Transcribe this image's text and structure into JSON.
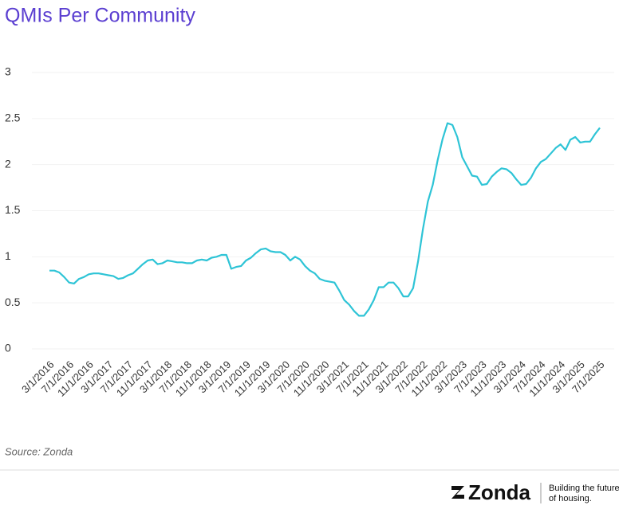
{
  "chart_data": {
    "type": "line",
    "title": "QMIs Per Community",
    "source": "Source: Zonda",
    "brand": "Zonda",
    "tagline": [
      "Building the future",
      "of housing."
    ],
    "categories": [
      "3/1/2016",
      null,
      null,
      null,
      "7/1/2016",
      null,
      null,
      null,
      "11/1/2016",
      null,
      null,
      null,
      "3/1/2017",
      null,
      null,
      null,
      "7/1/2017",
      null,
      null,
      null,
      "11/1/2017",
      null,
      null,
      null,
      "3/1/2018",
      null,
      null,
      null,
      "7/1/2018",
      null,
      null,
      null,
      "11/1/2018",
      null,
      null,
      null,
      "3/1/2019",
      null,
      null,
      null,
      "7/1/2019",
      null,
      null,
      null,
      "11/1/2019",
      null,
      null,
      null,
      "3/1/2020",
      null,
      null,
      null,
      "7/1/2020",
      null,
      null,
      null,
      "11/1/2020",
      null,
      null,
      null,
      "3/1/2021",
      null,
      null,
      null,
      "7/1/2021",
      null,
      null,
      null,
      "11/1/2021",
      null,
      null,
      null,
      "3/1/2022",
      null,
      null,
      null,
      "7/1/2022",
      null,
      null,
      null,
      "11/1/2022",
      null,
      null,
      null,
      "3/1/2023",
      null,
      null,
      null,
      "7/1/2023",
      null,
      null,
      null,
      "11/1/2023",
      null,
      null,
      null,
      "3/1/2024",
      null,
      null,
      null,
      "7/1/2024",
      null,
      null,
      null,
      "11/1/2024",
      null,
      null,
      null,
      "3/1/2025",
      null,
      null,
      null,
      "7/1/2025"
    ],
    "series": [
      {
        "name": "QMIs Per Community",
        "color": "#2ec4d6",
        "values": [
          0.85,
          0.85,
          0.83,
          0.78,
          0.72,
          0.71,
          0.76,
          0.78,
          0.81,
          0.82,
          0.82,
          0.81,
          0.8,
          0.79,
          0.76,
          0.77,
          0.8,
          0.82,
          0.87,
          0.92,
          0.96,
          0.97,
          0.92,
          0.93,
          0.96,
          0.95,
          0.94,
          0.94,
          0.93,
          0.93,
          0.96,
          0.97,
          0.96,
          0.99,
          1.0,
          1.02,
          1.02,
          0.87,
          0.89,
          0.9,
          0.96,
          0.99,
          1.04,
          1.08,
          1.09,
          1.06,
          1.05,
          1.05,
          1.02,
          0.96,
          1.0,
          0.97,
          0.9,
          0.85,
          0.82,
          0.76,
          0.74,
          0.73,
          0.72,
          0.63,
          0.53,
          0.48,
          0.41,
          0.36,
          0.36,
          0.43,
          0.53,
          0.67,
          0.67,
          0.72,
          0.72,
          0.66,
          0.57,
          0.57,
          0.66,
          0.95,
          1.3,
          1.6,
          1.78,
          2.05,
          2.28,
          2.45,
          2.43,
          2.3,
          2.08,
          1.98,
          1.88,
          1.87,
          1.78,
          1.79,
          1.87,
          1.92,
          1.96,
          1.95,
          1.91,
          1.84,
          1.78,
          1.79,
          1.86,
          1.96,
          2.03,
          2.06,
          2.12,
          2.18,
          2.22,
          2.16,
          2.27,
          2.3,
          2.24,
          2.25,
          2.25,
          2.33,
          2.4
        ]
      }
    ],
    "ylim": [
      0,
      3
    ],
    "yticks": [
      0,
      0.5,
      1,
      1.5,
      2,
      2.5,
      3
    ],
    "grid": true
  }
}
